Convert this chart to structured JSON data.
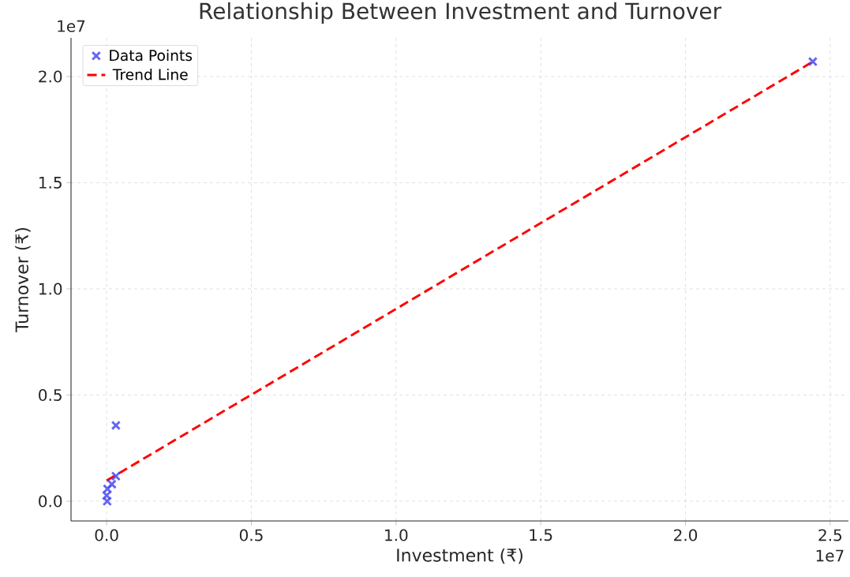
{
  "chart_data": {
    "type": "scatter",
    "title": "Relationship Between Investment and Turnover",
    "xlabel": "Investment (₹)",
    "ylabel": "Turnover (₹)",
    "annotations": [
      "1e7",
      "1e7"
    ],
    "series": [
      {
        "name": "Data Points",
        "color": "#4a4af0",
        "marker": "cross",
        "x": [
          2.44,
          0.032,
          0.032,
          0.018,
          0.003,
          0,
          0.002
        ],
        "values": [
          2.07,
          0.357,
          0.118,
          0.08,
          0.058,
          0.027,
          0
        ]
      },
      {
        "name": "Trend Line",
        "type": "line",
        "color": "#ff0000",
        "line_style": "dashed",
        "x": [
          0,
          2.44
        ],
        "values": [
          0.097,
          2.07
        ]
      }
    ],
    "xlim": [
      -0.123,
      2.563
    ],
    "ylim": [
      -0.093,
      2.182
    ],
    "xticks": [
      {
        "value": 0,
        "label": "0.0"
      },
      {
        "value": 0.5,
        "label": "0.5"
      },
      {
        "value": 1,
        "label": "1.0"
      },
      {
        "value": 1.5,
        "label": "1.5"
      },
      {
        "value": 2,
        "label": "2.0"
      },
      {
        "value": 2.5,
        "label": "2.5"
      }
    ],
    "yticks": [
      {
        "value": 0,
        "label": "0.0"
      },
      {
        "value": 0.5,
        "label": "0.5"
      },
      {
        "value": 1,
        "label": "1.0"
      },
      {
        "value": 1.5,
        "label": "1.5"
      },
      {
        "value": 2,
        "label": "2.0"
      }
    ],
    "grid": true,
    "legend": "top left"
  }
}
